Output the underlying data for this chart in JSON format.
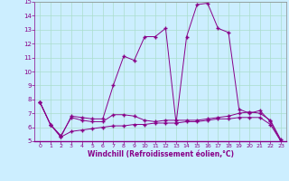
{
  "xlabel": "Windchill (Refroidissement éolien,°C)",
  "bg_color": "#cceeff",
  "grid_color": "#aaddcc",
  "line_color": "#880088",
  "xlim": [
    -0.5,
    23.5
  ],
  "ylim": [
    5,
    15
  ],
  "yticks": [
    5,
    6,
    7,
    8,
    9,
    10,
    11,
    12,
    13,
    14,
    15
  ],
  "xticks": [
    0,
    1,
    2,
    3,
    4,
    5,
    6,
    7,
    8,
    9,
    10,
    11,
    12,
    13,
    14,
    15,
    16,
    17,
    18,
    19,
    20,
    21,
    22,
    23
  ],
  "series": [
    {
      "x": [
        0,
        1,
        2,
        3,
        4,
        5,
        6,
        7,
        8,
        9,
        10,
        11,
        12,
        13,
        14,
        15,
        16,
        17,
        18,
        19,
        20,
        21,
        22,
        23
      ],
      "y": [
        7.8,
        6.2,
        5.3,
        6.8,
        6.7,
        6.6,
        6.6,
        9.0,
        11.1,
        10.8,
        12.5,
        12.5,
        13.1,
        6.3,
        12.5,
        14.8,
        14.9,
        13.1,
        12.8,
        7.3,
        7.0,
        7.2,
        6.4,
        5.0
      ]
    },
    {
      "x": [
        0,
        1,
        2,
        3,
        4,
        5,
        6,
        7,
        8,
        9,
        10,
        11,
        12,
        13,
        14,
        15,
        16,
        17,
        18,
        19,
        20,
        21,
        22,
        23
      ],
      "y": [
        7.8,
        6.2,
        5.4,
        6.7,
        6.5,
        6.4,
        6.4,
        6.9,
        6.9,
        6.8,
        6.5,
        6.4,
        6.5,
        6.5,
        6.5,
        6.5,
        6.6,
        6.7,
        6.8,
        7.0,
        7.1,
        7.0,
        6.5,
        5.1
      ]
    },
    {
      "x": [
        0,
        1,
        2,
        3,
        4,
        5,
        6,
        7,
        8,
        9,
        10,
        11,
        12,
        13,
        14,
        15,
        16,
        17,
        18,
        19,
        20,
        21,
        22,
        23
      ],
      "y": [
        7.8,
        6.2,
        5.3,
        5.7,
        5.8,
        5.9,
        6.0,
        6.1,
        6.1,
        6.2,
        6.2,
        6.3,
        6.3,
        6.3,
        6.4,
        6.4,
        6.5,
        6.6,
        6.6,
        6.7,
        6.7,
        6.7,
        6.2,
        5.0
      ]
    }
  ]
}
